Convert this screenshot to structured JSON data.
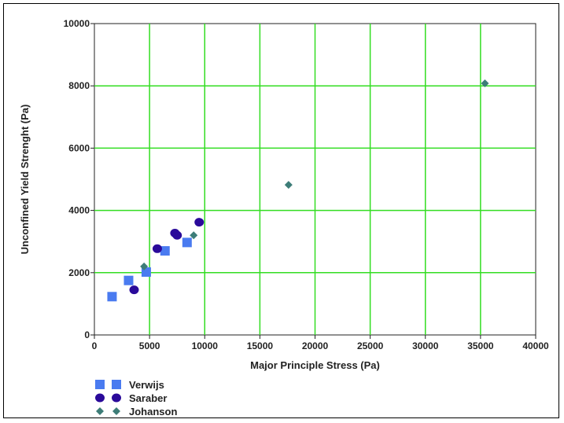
{
  "chart_data": {
    "type": "scatter",
    "title": "",
    "xlabel": "Major Principle Stress (Pa)",
    "ylabel": "Unconfined Yield Strenght (Pa)",
    "xlim": [
      0,
      40000
    ],
    "ylim": [
      0,
      10000
    ],
    "x_ticks": [
      "0",
      "5000",
      "10000",
      "15000",
      "20000",
      "25000",
      "30000",
      "35000",
      "40000"
    ],
    "y_ticks": [
      "0",
      "2000",
      "4000",
      "6000",
      "8000",
      "10000"
    ],
    "grid": true,
    "grid_color": "#33dd22",
    "legend_position": "bottom-left",
    "series": [
      {
        "name": "Verwijs",
        "marker": "square",
        "color": "#4a7bf0",
        "points": [
          [
            1600,
            1230
          ],
          [
            3100,
            1750
          ],
          [
            4700,
            2020
          ],
          [
            6400,
            2700
          ],
          [
            8400,
            2970
          ]
        ]
      },
      {
        "name": "Saraber",
        "marker": "circle",
        "color": "#2a0a9a",
        "points": [
          [
            3600,
            1450
          ],
          [
            5700,
            2770
          ],
          [
            7300,
            3270
          ],
          [
            7500,
            3200
          ],
          [
            9500,
            3620
          ]
        ]
      },
      {
        "name": "Johanson",
        "marker": "diamond",
        "color": "#3d7d78",
        "points": [
          [
            4500,
            2200
          ],
          [
            9000,
            3200
          ],
          [
            17600,
            4820
          ],
          [
            35400,
            8080
          ]
        ]
      }
    ]
  }
}
